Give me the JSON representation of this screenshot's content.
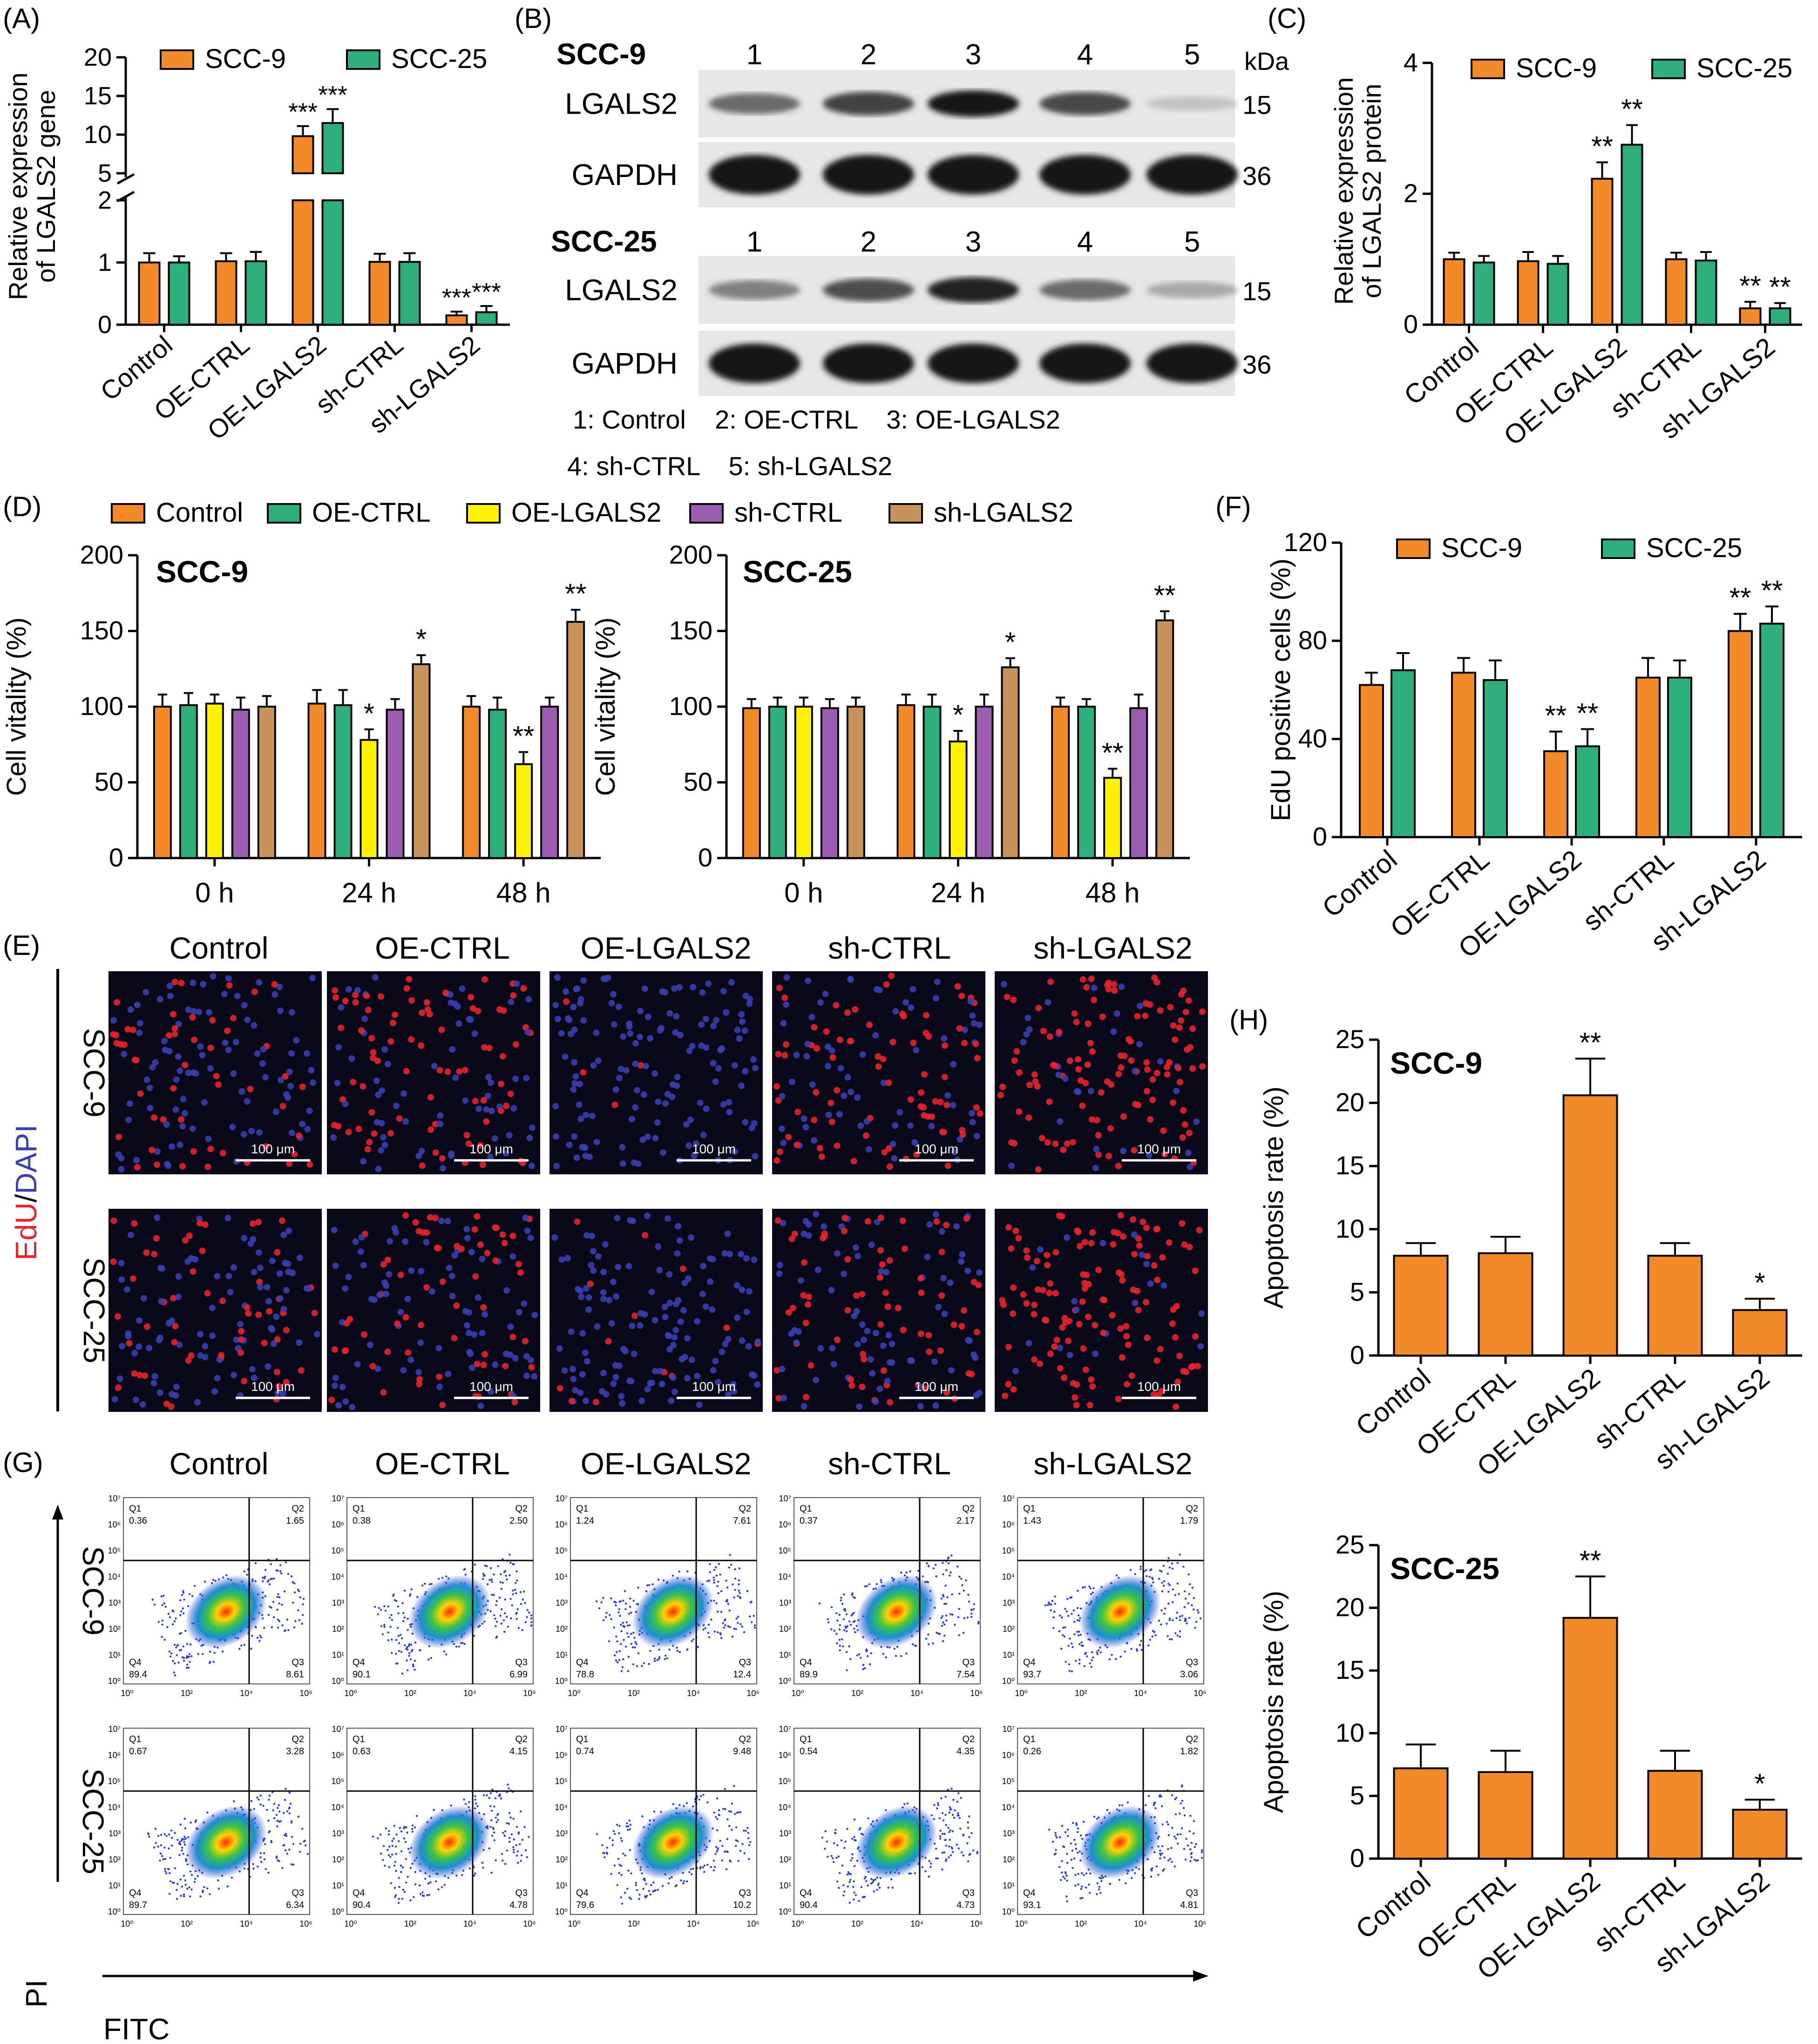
{
  "colors": {
    "orange": "#F28A2A",
    "green": "#2EAE7A",
    "yellow": "#FFF200",
    "purple": "#9B5CB0",
    "tan": "#C8935A",
    "edu_red": "#E8242C",
    "dapi_blue": "#3A3FB0"
  },
  "groups": [
    "Control",
    "OE-CTRL",
    "OE-LGALS2",
    "sh-CTRL",
    "sh-LGALS2"
  ],
  "panel_labels": {
    "A": "(A)",
    "B": "(B)",
    "C": "(C)",
    "D": "(D)",
    "E": "(E)",
    "F": "(F)",
    "G": "(G)",
    "H": "(H)"
  },
  "blot": {
    "kda_label": "kDa",
    "blocks": [
      {
        "cell_line": "SCC-9",
        "lanes": [
          "1",
          "2",
          "3",
          "4",
          "5"
        ],
        "rows": [
          {
            "protein": "LGALS2",
            "kda": "15",
            "intensities": [
              0.55,
              0.75,
              0.95,
              0.72,
              0.12
            ]
          },
          {
            "protein": "GAPDH",
            "kda": "36",
            "intensities": [
              0.95,
              0.95,
              0.95,
              0.95,
              0.95
            ]
          }
        ]
      },
      {
        "cell_line": "SCC-25",
        "lanes": [
          "1",
          "2",
          "3",
          "4",
          "5"
        ],
        "rows": [
          {
            "protein": "LGALS2",
            "kda": "15",
            "intensities": [
              0.45,
              0.7,
              0.9,
              0.55,
              0.25
            ]
          },
          {
            "protein": "GAPDH",
            "kda": "36",
            "intensities": [
              0.95,
              0.95,
              0.95,
              0.95,
              0.95
            ]
          }
        ]
      }
    ],
    "key_line1": "1: Control    2: OE-CTRL    3: OE-LGALS2",
    "key_line2": "4: sh-CTRL    5: sh-LGALS2"
  },
  "d_legend": [
    "Control",
    "OE-CTRL",
    "OE-LGALS2",
    "sh-CTRL",
    "sh-LGALS2"
  ],
  "micro": {
    "stain_red": "EdU",
    "stain_sep": "/",
    "stain_blue": "DAPI",
    "rows": [
      "SCC-9",
      "SCC-25"
    ],
    "scale_bar": "100 μm",
    "red_fraction": [
      [
        0.35,
        0.6,
        0.05,
        0.55,
        0.8
      ],
      [
        0.35,
        0.4,
        0.05,
        0.45,
        0.85
      ]
    ]
  },
  "flow": {
    "rows": [
      "SCC-9",
      "SCC-25"
    ],
    "x_axis": "FITC",
    "y_axis": "PI",
    "quadrant_names": [
      "Q1",
      "Q2",
      "Q3",
      "Q4"
    ],
    "quadrants": [
      [
        [
          "0.36",
          "1.65",
          "8.61",
          "89.4"
        ],
        [
          "0.38",
          "2.50",
          "6.99",
          "90.1"
        ],
        [
          "1.24",
          "7.61",
          "12.4",
          "78.8"
        ],
        [
          "0.37",
          "2.17",
          "7.54",
          "89.9"
        ],
        [
          "1.43",
          "1.79",
          "3.06",
          "93.7"
        ]
      ],
      [
        [
          "0.67",
          "3.28",
          "6.34",
          "89.7"
        ],
        [
          "0.63",
          "4.15",
          "4.78",
          "90.4"
        ],
        [
          "0.74",
          "9.48",
          "10.2",
          "79.6"
        ],
        [
          "0.54",
          "4.35",
          "4.73",
          "90.4"
        ],
        [
          "0.26",
          "1.82",
          "4.81",
          "93.1"
        ]
      ]
    ],
    "x_ticks": [
      "10⁰",
      "10²",
      "10⁴",
      "10⁶"
    ],
    "y_ticks": [
      "10⁷",
      "10⁶",
      "10⁵",
      "10⁴",
      "10³",
      "10²",
      "10¹",
      "10⁰"
    ]
  },
  "chart_data": [
    {
      "id": "A",
      "type": "bar",
      "title": "",
      "ylabel_line1": "Relative expression",
      "ylabel_line2": "of LGALS2 gene",
      "categories": [
        "Control",
        "OE-CTRL",
        "OE-LGALS2",
        "sh-CTRL",
        "sh-LGALS2"
      ],
      "series": [
        {
          "name": "SCC-9",
          "values": [
            1.0,
            1.02,
            9.8,
            1.01,
            0.15
          ],
          "errors": [
            0.15,
            0.13,
            1.3,
            0.13,
            0.06
          ],
          "stars": [
            "",
            "",
            "***",
            "",
            "***"
          ]
        },
        {
          "name": "SCC-25",
          "values": [
            1.0,
            1.02,
            11.5,
            1.01,
            0.2
          ],
          "errors": [
            0.1,
            0.15,
            1.8,
            0.14,
            0.1
          ],
          "stars": [
            "",
            "",
            "***",
            "",
            "***"
          ]
        }
      ],
      "y_axis": "broken",
      "lower_range": [
        0,
        2
      ],
      "upper_range": [
        5,
        20
      ],
      "ticks_lower": [
        "0",
        "1",
        "2"
      ],
      "ticks_upper": [
        "5",
        "10",
        "15",
        "20"
      ]
    },
    {
      "id": "C",
      "type": "bar",
      "title": "",
      "ylabel_line1": "Relative expression",
      "ylabel_line2": "of LGALS2 protein",
      "categories": [
        "Control",
        "OE-CTRL",
        "OE-LGALS2",
        "sh-CTRL",
        "sh-LGALS2"
      ],
      "series": [
        {
          "name": "SCC-9",
          "values": [
            1.0,
            0.97,
            2.23,
            1.0,
            0.25
          ],
          "errors": [
            0.1,
            0.14,
            0.25,
            0.1,
            0.1
          ],
          "stars": [
            "",
            "",
            "**",
            "",
            "**"
          ]
        },
        {
          "name": "SCC-25",
          "values": [
            0.95,
            0.93,
            2.75,
            0.98,
            0.25
          ],
          "errors": [
            0.1,
            0.12,
            0.3,
            0.13,
            0.08
          ],
          "stars": [
            "",
            "",
            "**",
            "",
            "**"
          ]
        }
      ],
      "ylim": [
        0,
        4
      ],
      "yticks": [
        "0",
        "2",
        "4"
      ]
    },
    {
      "id": "D1",
      "type": "bar",
      "title": "SCC-9",
      "ylabel": "Cell vitality (%)",
      "categories": [
        "0 h",
        "24 h",
        "48 h"
      ],
      "series": [
        {
          "name": "Control",
          "values": [
            100,
            102,
            100
          ],
          "errors": [
            8,
            9,
            7
          ],
          "stars": [
            "",
            "",
            ""
          ]
        },
        {
          "name": "OE-CTRL",
          "values": [
            101,
            101,
            98
          ],
          "errors": [
            8,
            10,
            8
          ],
          "stars": [
            "",
            "",
            ""
          ]
        },
        {
          "name": "OE-LGALS2",
          "values": [
            102,
            78,
            62
          ],
          "errors": [
            6,
            7,
            8
          ],
          "stars": [
            "",
            "*",
            "**"
          ]
        },
        {
          "name": "sh-CTRL",
          "values": [
            98,
            98,
            100
          ],
          "errors": [
            8,
            7,
            6
          ],
          "stars": [
            "",
            "",
            ""
          ]
        },
        {
          "name": "sh-LGALS2",
          "values": [
            100,
            128,
            156
          ],
          "errors": [
            7,
            6,
            8
          ],
          "stars": [
            "",
            "*",
            "**"
          ]
        }
      ],
      "ylim": [
        0,
        200
      ],
      "yticks": [
        "0",
        "50",
        "100",
        "150",
        "200"
      ]
    },
    {
      "id": "D2",
      "type": "bar",
      "title": "SCC-25",
      "ylabel": "Cell vitality (%)",
      "categories": [
        "0 h",
        "24 h",
        "48 h"
      ],
      "series": [
        {
          "name": "Control",
          "values": [
            99,
            101,
            100
          ],
          "errors": [
            6,
            7,
            6
          ],
          "stars": [
            "",
            "",
            ""
          ]
        },
        {
          "name": "OE-CTRL",
          "values": [
            100,
            100,
            100
          ],
          "errors": [
            6,
            8,
            5
          ],
          "stars": [
            "",
            "",
            ""
          ]
        },
        {
          "name": "OE-LGALS2",
          "values": [
            100,
            77,
            53
          ],
          "errors": [
            6,
            7,
            6
          ],
          "stars": [
            "",
            "*",
            "**"
          ]
        },
        {
          "name": "sh-CTRL",
          "values": [
            99,
            100,
            99
          ],
          "errors": [
            6,
            8,
            9
          ],
          "stars": [
            "",
            "",
            ""
          ]
        },
        {
          "name": "sh-LGALS2",
          "values": [
            100,
            126,
            157
          ],
          "errors": [
            6,
            6,
            6
          ],
          "stars": [
            "",
            "*",
            "**"
          ]
        }
      ],
      "ylim": [
        0,
        200
      ],
      "yticks": [
        "0",
        "50",
        "100",
        "150",
        "200"
      ]
    },
    {
      "id": "F",
      "type": "bar",
      "title": "",
      "ylabel": "EdU positive cells (%)",
      "categories": [
        "Control",
        "OE-CTRL",
        "OE-LGALS2",
        "sh-CTRL",
        "sh-LGALS2"
      ],
      "series": [
        {
          "name": "SCC-9",
          "values": [
            62,
            67,
            35,
            65,
            84
          ],
          "errors": [
            5,
            6,
            8,
            8,
            7
          ],
          "stars": [
            "",
            "",
            "**",
            "",
            "**"
          ]
        },
        {
          "name": "SCC-25",
          "values": [
            68,
            64,
            37,
            65,
            87
          ],
          "errors": [
            7,
            8,
            7,
            7,
            7
          ],
          "stars": [
            "",
            "",
            "**",
            "",
            "**"
          ]
        }
      ],
      "ylim": [
        0,
        120
      ],
      "yticks": [
        "0",
        "40",
        "80",
        "120"
      ]
    },
    {
      "id": "H1",
      "type": "bar",
      "title": "SCC-9",
      "ylabel": "Apoptosis rate (%)",
      "categories": [
        "Control",
        "OE-CTRL",
        "OE-LGALS2",
        "sh-CTRL",
        "sh-LGALS2"
      ],
      "series": [
        {
          "name": "SCC-9",
          "values": [
            7.9,
            8.1,
            20.6,
            7.9,
            3.6
          ],
          "errors": [
            1.0,
            1.3,
            2.9,
            1.0,
            0.9
          ],
          "stars": [
            "",
            "",
            "**",
            "",
            "*"
          ]
        }
      ],
      "ylim": [
        0,
        25
      ],
      "yticks": [
        "0",
        "5",
        "10",
        "15",
        "20",
        "25"
      ]
    },
    {
      "id": "H2",
      "type": "bar",
      "title": "SCC-25",
      "ylabel": "Apoptosis rate (%)",
      "categories": [
        "Control",
        "OE-CTRL",
        "OE-LGALS2",
        "sh-CTRL",
        "sh-LGALS2"
      ],
      "series": [
        {
          "name": "SCC-25",
          "values": [
            7.2,
            6.9,
            19.2,
            7.0,
            3.9
          ],
          "errors": [
            1.9,
            1.7,
            3.3,
            1.6,
            0.8
          ],
          "stars": [
            "",
            "",
            "**",
            "",
            "*"
          ]
        }
      ],
      "ylim": [
        0,
        25
      ],
      "yticks": [
        "0",
        "5",
        "10",
        "15",
        "20",
        "25"
      ]
    }
  ]
}
